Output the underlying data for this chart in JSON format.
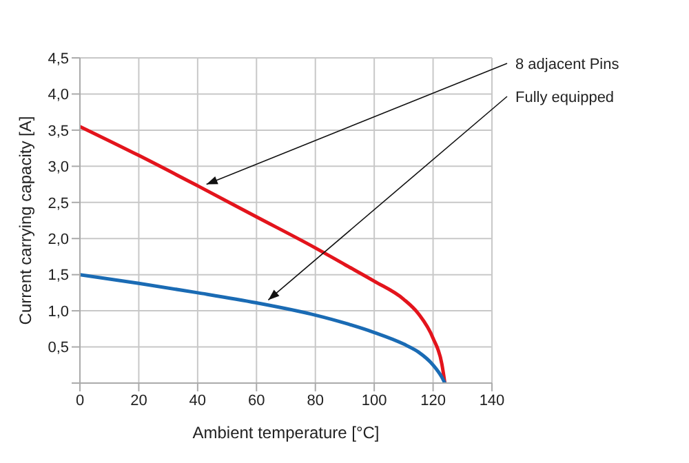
{
  "chart_data": {
    "type": "line",
    "xlabel": "Ambient temperature [°C]",
    "ylabel": "Current carrying capacity [A]",
    "xlim": [
      0,
      140
    ],
    "xticks": [
      0,
      20,
      40,
      60,
      80,
      100,
      120,
      140
    ],
    "ylim": [
      0,
      4.5
    ],
    "yticks": [
      {
        "value": 0,
        "label": null
      },
      {
        "value": 0.5,
        "label": "0,5"
      },
      {
        "value": 1,
        "label": "1,0"
      },
      {
        "value": 1.5,
        "label": "1,5"
      },
      {
        "value": 2,
        "label": "2,0"
      },
      {
        "value": 2.5,
        "label": "2,5"
      },
      {
        "value": 3,
        "label": "3,0"
      },
      {
        "value": 3.5,
        "label": "3,5"
      },
      {
        "value": 4,
        "label": "4,0"
      },
      {
        "value": 4.5,
        "label": "4,5"
      }
    ],
    "grid": true,
    "legend": false,
    "marker": "none",
    "line_style": "solid",
    "x": [
      0,
      20,
      40,
      60,
      80,
      90,
      100,
      110,
      115,
      120,
      123,
      124
    ],
    "series": [
      {
        "color": "#e3141c",
        "values": [
          3.55,
          3.15,
          2.73,
          2.3,
          1.87,
          1.64,
          1.41,
          1.16,
          0.96,
          0.62,
          0.26,
          0
        ]
      },
      {
        "color": "#1a6bb4",
        "values": [
          1.5,
          1.38,
          1.25,
          1.11,
          0.94,
          0.83,
          0.7,
          0.54,
          0.43,
          0.25,
          0.08,
          0
        ]
      }
    ],
    "annotations": [
      {
        "text": "8 adjacent Pins",
        "x": 43,
        "y": 2.75
      },
      {
        "text": "Fully equipped",
        "x": 64,
        "y": 1.15
      }
    ]
  }
}
